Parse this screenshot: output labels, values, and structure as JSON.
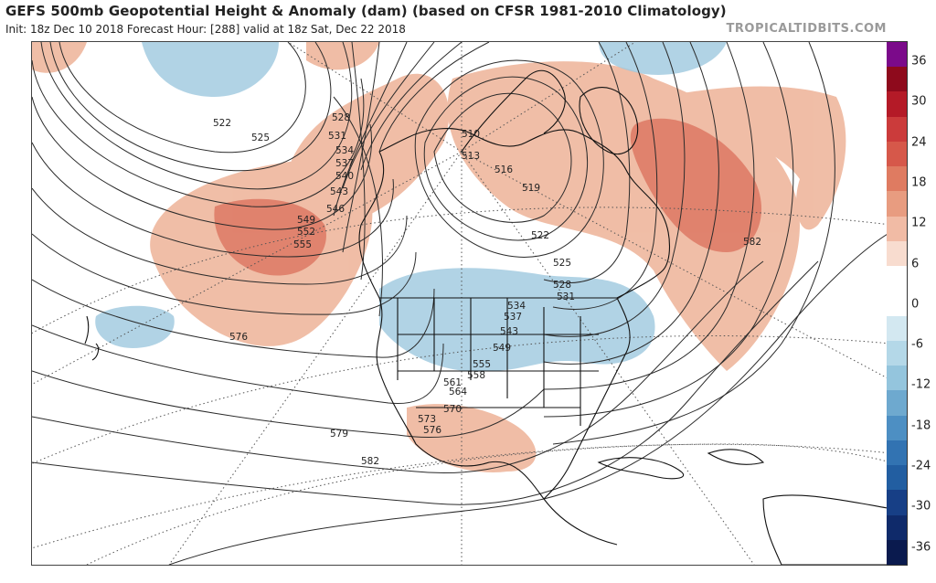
{
  "header": {
    "title": "GEFS 500mb Geopotential Height & Anomaly (dam) (based on CFSR 1981-2010 Climatology)",
    "subtitle": "Init: 18z Dec 10 2018   Forecast Hour: [288]   valid at 18z Sat, Dec 22 2018",
    "brand": "TROPICALTIDBITS.COM"
  },
  "colorbar": {
    "ticks": [
      "36",
      "30",
      "24",
      "18",
      "12",
      "6",
      "0",
      "-6",
      "-12",
      "-18",
      "-24",
      "-30",
      "-36"
    ],
    "segments": [
      "#7b0a8a",
      "#8e0a1c",
      "#b41a27",
      "#cb3b3b",
      "#d6584a",
      "#df7b61",
      "#e89c80",
      "#f1bba5",
      "#f8dccf",
      "#ffffff",
      "#ffffff",
      "#d3e8f1",
      "#b4d8e8",
      "#94c5dd",
      "#6ea9cf",
      "#4d8fc3",
      "#3273b2",
      "#225ea1",
      "#173f86",
      "#0f2a6a",
      "#0a1a4e"
    ]
  },
  "contour_labels": [
    "522",
    "525",
    "528",
    "531",
    "534",
    "537",
    "540",
    "543",
    "546",
    "549",
    "552",
    "555",
    "510",
    "513",
    "516",
    "519",
    "522",
    "525",
    "528",
    "531",
    "534",
    "537",
    "543",
    "549",
    "555",
    "558",
    "561",
    "564",
    "570",
    "573",
    "576",
    "576",
    "579",
    "582",
    "582"
  ],
  "legend_colors": {
    "positive_anomaly": "#e9a386",
    "negative_anomaly": "#9ec8df",
    "land_line": "#111111",
    "height_contour": "#2b2b2b",
    "graticule": "#555555"
  }
}
